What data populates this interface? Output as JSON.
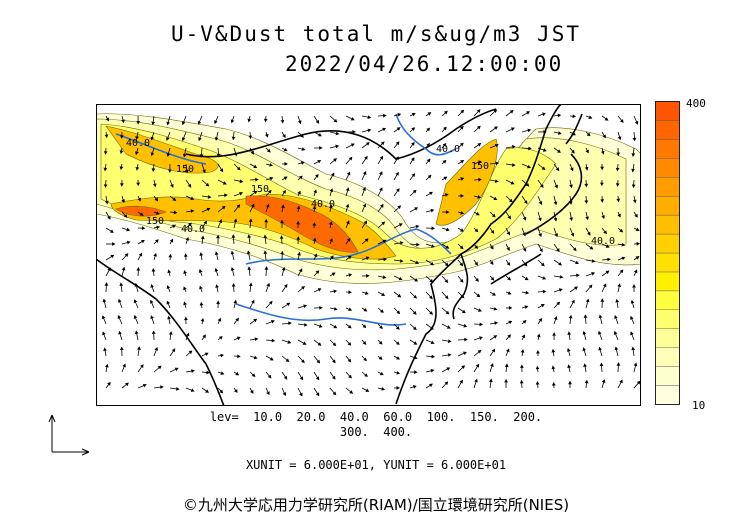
{
  "title": "U-V&Dust total m/s&ug/m3 JST",
  "datetime": "2022/04/26.12:00:00",
  "colorbar": {
    "max_label": "400",
    "min_label": "10",
    "colors": [
      "#ffffe0",
      "#ffffd0",
      "#ffffb8",
      "#ffff99",
      "#ffff70",
      "#ffff40",
      "#fff000",
      "#ffe000",
      "#ffd000",
      "#ffbf00",
      "#ffae00",
      "#ff9c00",
      "#ff8a00",
      "#ff7800",
      "#ff6600",
      "#ff5500"
    ]
  },
  "contour_labels": [
    "40.0",
    "150",
    "40.0",
    "150",
    "40.0",
    "150",
    "40.0",
    "150",
    "40.0"
  ],
  "levels_line1": "lev=  10.0  20.0  40.0  60.0  100.  150.  200.",
  "levels_line2": "300.  400.",
  "units": "XUNIT = 6.000E+01, YUNIT = 6.000E+01",
  "copyright": "©九州大学応用力学研究所(RIAM)/国立環境研究所(NIES)"
}
